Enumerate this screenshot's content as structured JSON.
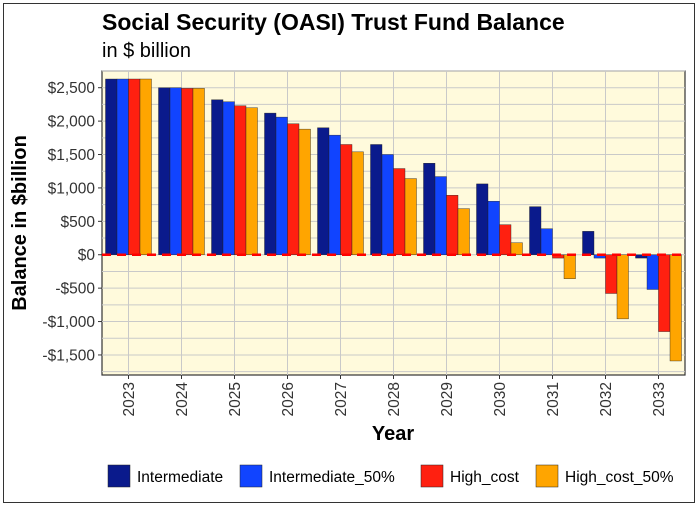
{
  "chart_data": {
    "type": "bar",
    "title": "Social Security (OASI) Trust Fund  Balance",
    "subtitle": "in $ billion",
    "xlabel": "Year",
    "ylabel": "Balance in $billion",
    "categories": [
      "2023",
      "2024",
      "2025",
      "2026",
      "2027",
      "2028",
      "2029",
      "2030",
      "2031",
      "2032",
      "2033"
    ],
    "ylim": [
      -1800,
      2750
    ],
    "yticks": [
      -1500,
      -1000,
      -500,
      0,
      500,
      1000,
      1500,
      2000,
      2500
    ],
    "ytick_labels": [
      "-$1,500",
      "-$1,000",
      "-$500",
      "$0",
      "$500",
      "$1,000",
      "$1,500",
      "$2,000",
      "$2,500"
    ],
    "grid": true,
    "zero_line": true,
    "legend_position": "bottom",
    "series": [
      {
        "name": "Intermediate",
        "color": "#0a1a8c",
        "values": [
          2630,
          2500,
          2320,
          2120,
          1900,
          1650,
          1370,
          1060,
          720,
          350,
          -50
        ]
      },
      {
        "name": "Intermediate_50%",
        "color": "#1144ff",
        "values": [
          2630,
          2500,
          2290,
          2060,
          1790,
          1500,
          1170,
          800,
          390,
          -50,
          -520
        ]
      },
      {
        "name": "High_cost",
        "color": "#ff2010",
        "values": [
          2630,
          2490,
          2230,
          1960,
          1650,
          1290,
          890,
          450,
          -50,
          -580,
          -1150
        ]
      },
      {
        "name": "High_cost_50%",
        "color": "#ffa500",
        "values": [
          2630,
          2490,
          2200,
          1880,
          1540,
          1140,
          690,
          180,
          -360,
          -960,
          -1590
        ]
      }
    ]
  }
}
